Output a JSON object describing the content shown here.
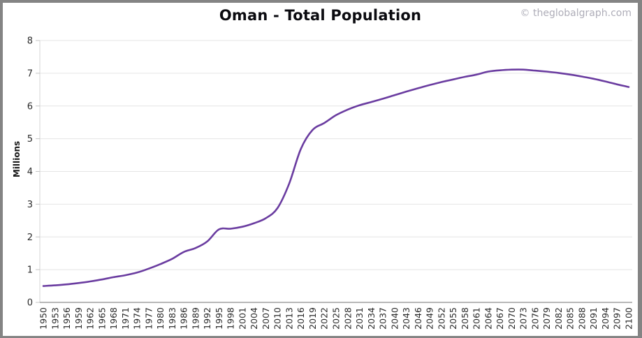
{
  "window": {
    "watermark": "© theglobalgraph.com"
  },
  "chart_data": {
    "type": "line",
    "title": "Oman - Total Population",
    "xlabel": "",
    "ylabel": "Millions",
    "ylim": [
      0,
      8
    ],
    "yticks": [
      0,
      1,
      2,
      3,
      4,
      5,
      6,
      7,
      8
    ],
    "grid": true,
    "legend": "none",
    "x_tick_rotation": -90,
    "categories": [
      1950,
      1953,
      1956,
      1959,
      1962,
      1965,
      1968,
      1971,
      1974,
      1977,
      1980,
      1983,
      1986,
      1989,
      1992,
      1995,
      1998,
      2001,
      2004,
      2007,
      2010,
      2013,
      2016,
      2019,
      2022,
      2025,
      2028,
      2031,
      2034,
      2037,
      2040,
      2043,
      2046,
      2049,
      2052,
      2055,
      2058,
      2061,
      2064,
      2067,
      2070,
      2073,
      2076,
      2079,
      2082,
      2085,
      2088,
      2091,
      2094,
      2097,
      2100
    ],
    "series": [
      {
        "name": "Oman total population (millions)",
        "color": "#6A3CA0",
        "values": [
          0.5,
          0.52,
          0.55,
          0.59,
          0.64,
          0.7,
          0.77,
          0.83,
          0.91,
          1.03,
          1.17,
          1.33,
          1.54,
          1.66,
          1.86,
          2.23,
          2.25,
          2.31,
          2.42,
          2.57,
          2.88,
          3.63,
          4.69,
          5.27,
          5.48,
          5.72,
          5.89,
          6.02,
          6.12,
          6.22,
          6.33,
          6.44,
          6.54,
          6.64,
          6.73,
          6.81,
          6.89,
          6.96,
          7.05,
          7.09,
          7.11,
          7.11,
          7.08,
          7.05,
          7.01,
          6.96,
          6.9,
          6.83,
          6.75,
          6.66,
          6.58
        ]
      }
    ],
    "styles": {
      "line_color": "#6A3CA0",
      "grid_color": "#E4E4E4",
      "bottom_axis_color": "#8C8C8C",
      "left_axis_color": "#D6D6D6",
      "tick_mark_color": "#C4C4C4",
      "tick_label_color": "#2B2B2B",
      "title_color": "#0B0B10",
      "watermark_color": "#AEADB8",
      "frame_border_color": "#848484",
      "background": "#FFFFFF"
    }
  }
}
